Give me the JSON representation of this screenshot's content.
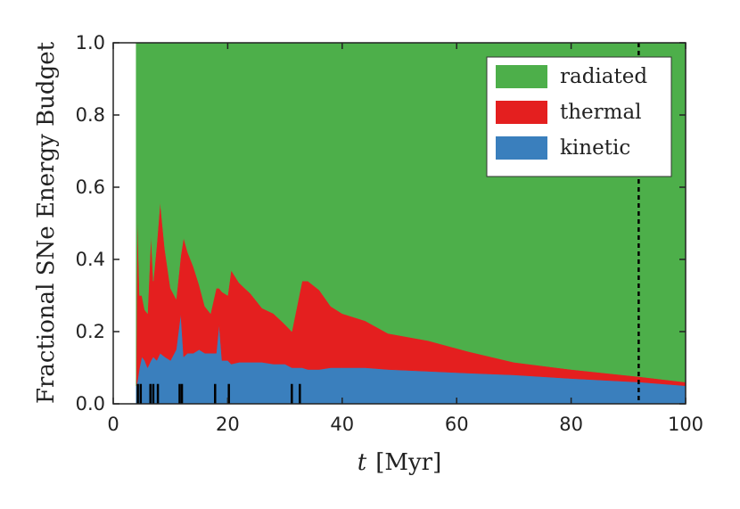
{
  "chart_data": {
    "type": "area",
    "stacked": true,
    "xlabel_var": "t",
    "xlabel_unit": "[Myr]",
    "ylabel": "Fractional SNe Energy Budget",
    "xlim": [
      0,
      100
    ],
    "ylim": [
      0.0,
      1.0
    ],
    "xticks": [
      "0",
      "20",
      "40",
      "60",
      "80",
      "100"
    ],
    "yticks": [
      "0.0",
      "0.2",
      "0.4",
      "0.6",
      "0.8",
      "1.0"
    ],
    "legend_position": "top-right",
    "x": [
      4.0,
      4.2,
      4.6,
      5.0,
      5.5,
      6.0,
      6.6,
      7.0,
      7.6,
      8.2,
      9.0,
      10.0,
      11.0,
      11.8,
      12.3,
      13.0,
      14.0,
      15.0,
      16.0,
      17.0,
      18.0,
      18.5,
      19.0,
      20.0,
      20.6,
      22.0,
      24.0,
      26.0,
      28.0,
      30.0,
      31.2,
      33.0,
      34.0,
      36.0,
      38.0,
      40.0,
      44.0,
      48.0,
      55.0,
      62.0,
      70.0,
      80.0,
      92.0,
      100.0
    ],
    "series": [
      {
        "name": "kinetic",
        "color": "#3a7fbd",
        "values": [
          0.05,
          0.06,
          0.1,
          0.13,
          0.12,
          0.1,
          0.12,
          0.13,
          0.12,
          0.14,
          0.13,
          0.12,
          0.15,
          0.25,
          0.13,
          0.14,
          0.14,
          0.15,
          0.14,
          0.14,
          0.14,
          0.22,
          0.12,
          0.12,
          0.11,
          0.115,
          0.115,
          0.115,
          0.11,
          0.11,
          0.1,
          0.1,
          0.095,
          0.095,
          0.1,
          0.1,
          0.1,
          0.095,
          0.09,
          0.085,
          0.08,
          0.07,
          0.06,
          0.05
        ]
      },
      {
        "name": "thermal",
        "color": "#e41f1f",
        "values": [
          0.0,
          0.47,
          0.2,
          0.17,
          0.14,
          0.15,
          0.35,
          0.21,
          0.32,
          0.42,
          0.3,
          0.2,
          0.14,
          0.16,
          0.33,
          0.28,
          0.24,
          0.18,
          0.13,
          0.11,
          0.18,
          0.1,
          0.19,
          0.18,
          0.26,
          0.22,
          0.19,
          0.15,
          0.14,
          0.11,
          0.1,
          0.24,
          0.245,
          0.22,
          0.17,
          0.15,
          0.13,
          0.1,
          0.085,
          0.06,
          0.035,
          0.025,
          0.015,
          0.01
        ]
      },
      {
        "name": "radiated",
        "color": "#4daf4a",
        "values": [
          0.95,
          0.47,
          0.7,
          0.7,
          0.74,
          0.75,
          0.53,
          0.66,
          0.56,
          0.44,
          0.57,
          0.68,
          0.71,
          0.59,
          0.54,
          0.58,
          0.62,
          0.67,
          0.73,
          0.75,
          0.68,
          0.68,
          0.69,
          0.7,
          0.63,
          0.665,
          0.695,
          0.735,
          0.75,
          0.78,
          0.8,
          0.66,
          0.66,
          0.685,
          0.73,
          0.75,
          0.77,
          0.805,
          0.825,
          0.855,
          0.885,
          0.905,
          0.925,
          0.94
        ]
      }
    ],
    "legend_order": [
      "radiated",
      "thermal",
      "kinetic"
    ],
    "event_markers_x": [
      4.3,
      4.8,
      6.5,
      7.0,
      7.8,
      11.6,
      12.0,
      17.8,
      20.2,
      31.2,
      32.6
    ],
    "vline_x": 91.8
  }
}
